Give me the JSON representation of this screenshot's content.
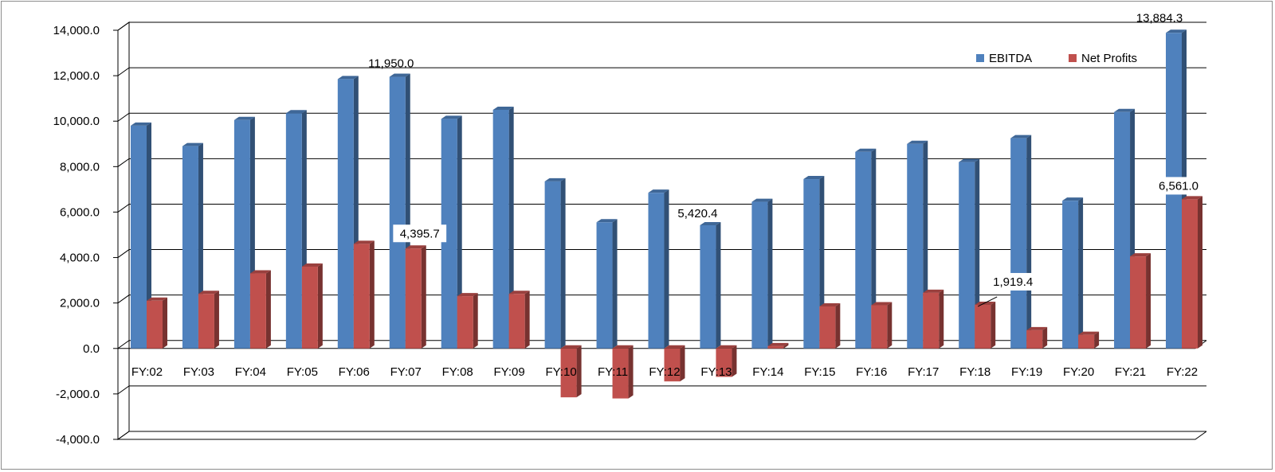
{
  "chart_data": {
    "type": "bar",
    "categories": [
      "FY:02",
      "FY:03",
      "FY:04",
      "FY:05",
      "FY:06",
      "FY:07",
      "FY:08",
      "FY:09",
      "FY:10",
      "FY:11",
      "FY:12",
      "FY:13",
      "FY:14",
      "FY:15",
      "FY:16",
      "FY:17",
      "FY:18",
      "FY:19",
      "FY:20",
      "FY:21",
      "FY:22"
    ],
    "series": [
      {
        "name": "EBITDA",
        "color": "#4f81bd",
        "values": [
          9800,
          8900,
          10050,
          10350,
          11850,
          11950,
          10100,
          10500,
          7350,
          5550,
          6850,
          5420.4,
          6450,
          7450,
          8650,
          9000,
          8200,
          9250,
          6500,
          10400,
          13884.3
        ]
      },
      {
        "name": "Net Profits",
        "color": "#c0504d",
        "values": [
          2100,
          2400,
          3300,
          3600,
          4600,
          4395.7,
          2300,
          2400,
          -2150,
          -2200,
          -1450,
          -1250,
          100,
          1850,
          1900,
          2450,
          1919.4,
          800,
          600,
          4050,
          6561.0
        ]
      }
    ],
    "data_labels": [
      {
        "series": "EBITDA",
        "category": "FY:07",
        "text": "11,950.0"
      },
      {
        "series": "Net Profits",
        "category": "FY:07",
        "text": "4,395.7"
      },
      {
        "series": "EBITDA",
        "category": "FY:13",
        "text": "5,420.4"
      },
      {
        "series": "Net Profits",
        "category": "FY:18",
        "text": "1,919.4"
      },
      {
        "series": "EBITDA",
        "category": "FY:22",
        "text": "13,884.3"
      },
      {
        "series": "Net Profits",
        "category": "FY:22",
        "text": "6,561.0"
      }
    ],
    "y_ticks": [
      "14,000.0",
      "12,000.0",
      "10,000.0",
      "8,000.0",
      "6,000.0",
      "4,000.0",
      "2,000.0",
      "0.0",
      "-2,000.0",
      "-4,000.0"
    ],
    "ylim": [
      -4000,
      14000
    ],
    "grid": true,
    "legend_position": "top-right",
    "style": "3d-clustered-column"
  }
}
